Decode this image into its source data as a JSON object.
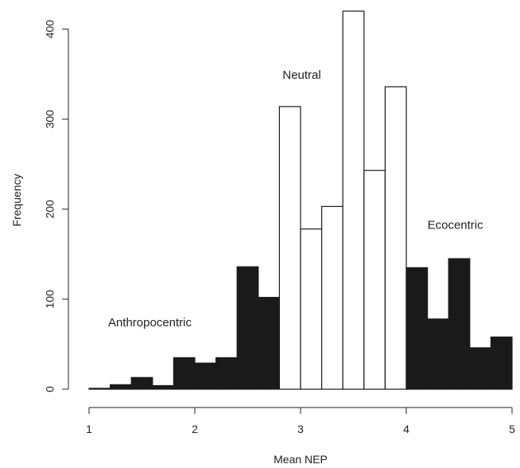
{
  "chart_data": {
    "type": "bar",
    "xlabel": "Mean NEP",
    "ylabel": "Frequency",
    "xlim": [
      1,
      5
    ],
    "ylim": [
      0,
      420
    ],
    "x_ticks": [
      1,
      2,
      3,
      4,
      5
    ],
    "y_ticks": [
      0,
      100,
      200,
      300,
      400
    ],
    "grid": false,
    "bin_width": 0.2,
    "bins": [
      {
        "x0": 1.0,
        "x1": 1.2,
        "value": 1,
        "group": "Anthropocentric"
      },
      {
        "x0": 1.2,
        "x1": 1.4,
        "value": 5,
        "group": "Anthropocentric"
      },
      {
        "x0": 1.4,
        "x1": 1.6,
        "value": 13,
        "group": "Anthropocentric"
      },
      {
        "x0": 1.6,
        "x1": 1.8,
        "value": 4,
        "group": "Anthropocentric"
      },
      {
        "x0": 1.8,
        "x1": 2.0,
        "value": 35,
        "group": "Anthropocentric"
      },
      {
        "x0": 2.0,
        "x1": 2.2,
        "value": 29,
        "group": "Anthropocentric"
      },
      {
        "x0": 2.2,
        "x1": 2.4,
        "value": 35,
        "group": "Anthropocentric"
      },
      {
        "x0": 2.4,
        "x1": 2.6,
        "value": 136,
        "group": "Anthropocentric"
      },
      {
        "x0": 2.6,
        "x1": 2.8,
        "value": 102,
        "group": "Anthropocentric"
      },
      {
        "x0": 2.8,
        "x1": 3.0,
        "value": 314,
        "group": "Neutral"
      },
      {
        "x0": 3.0,
        "x1": 3.2,
        "value": 178,
        "group": "Neutral"
      },
      {
        "x0": 3.2,
        "x1": 3.4,
        "value": 203,
        "group": "Neutral"
      },
      {
        "x0": 3.4,
        "x1": 3.6,
        "value": 420,
        "group": "Neutral"
      },
      {
        "x0": 3.6,
        "x1": 3.8,
        "value": 243,
        "group": "Neutral"
      },
      {
        "x0": 3.8,
        "x1": 4.0,
        "value": 336,
        "group": "Neutral"
      },
      {
        "x0": 4.0,
        "x1": 4.2,
        "value": 135,
        "group": "Ecocentric"
      },
      {
        "x0": 4.2,
        "x1": 4.4,
        "value": 78,
        "group": "Ecocentric"
      },
      {
        "x0": 4.4,
        "x1": 4.6,
        "value": 145,
        "group": "Ecocentric"
      },
      {
        "x0": 4.6,
        "x1": 4.8,
        "value": 46,
        "group": "Ecocentric"
      },
      {
        "x0": 4.8,
        "x1": 5.0,
        "value": 58,
        "group": "Ecocentric"
      }
    ],
    "group_colors": {
      "Anthropocentric": "#1a1a1a",
      "Neutral": "#ffffff",
      "Ecocentric": "#1a1a1a"
    },
    "annotations": [
      {
        "text": "Anthropocentric",
        "x": 1.18,
        "y": 70
      },
      {
        "text": "Neutral",
        "x": 2.83,
        "y": 345
      },
      {
        "text": "Ecocentric",
        "x": 4.2,
        "y": 178
      }
    ]
  }
}
